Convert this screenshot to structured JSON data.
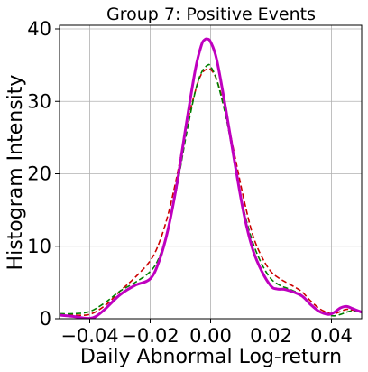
{
  "chart_data": {
    "type": "line",
    "title": "Group 7: Positive Events",
    "xlabel": "Daily Abnormal Log-return",
    "ylabel": "Histogram Intensity",
    "xlim": [
      -0.05,
      0.05
    ],
    "ylim": [
      0,
      40.5
    ],
    "grid": true,
    "x_ticks": [
      -0.04,
      -0.02,
      0.0,
      0.02,
      0.04
    ],
    "x_tick_labels": [
      "−0.04",
      "−0.02",
      "0.00",
      "0.02",
      "0.04"
    ],
    "y_ticks": [
      0,
      10,
      20,
      30,
      40
    ],
    "y_tick_labels": [
      "0",
      "10",
      "20",
      "30",
      "40"
    ],
    "series": [
      {
        "color": "#bf00bf",
        "style": "solid",
        "width": 3,
        "x": [
          -0.05,
          -0.045,
          -0.042,
          -0.04,
          -0.038,
          -0.035,
          -0.03,
          -0.025,
          -0.02,
          -0.017,
          -0.014,
          -0.011,
          -0.008,
          -0.005,
          -0.003,
          -0.002,
          -0.001,
          0.0,
          0.002,
          0.005,
          0.008,
          0.011,
          0.014,
          0.017,
          0.02,
          0.022,
          0.025,
          0.03,
          0.033,
          0.036,
          0.039,
          0.041,
          0.043,
          0.045,
          0.047,
          0.05
        ],
        "y": [
          0.5,
          0.3,
          0.1,
          0.05,
          0.3,
          1.3,
          3.3,
          4.6,
          5.5,
          8.0,
          12.5,
          19.0,
          27.0,
          34.5,
          37.8,
          38.5,
          38.6,
          38.2,
          35.8,
          29.0,
          21.5,
          14.5,
          9.5,
          6.5,
          4.5,
          4.1,
          4.0,
          3.2,
          2.0,
          1.0,
          0.6,
          0.9,
          1.5,
          1.7,
          1.4,
          0.9
        ]
      },
      {
        "color": "#cc0000",
        "style": "dashed",
        "width": 1.6,
        "x": [
          -0.05,
          -0.045,
          -0.04,
          -0.035,
          -0.03,
          -0.025,
          -0.02,
          -0.017,
          -0.014,
          -0.011,
          -0.008,
          -0.005,
          -0.003,
          -0.001,
          0.0,
          0.002,
          0.005,
          0.008,
          0.011,
          0.014,
          0.017,
          0.02,
          0.023,
          0.026,
          0.03,
          0.033,
          0.036,
          0.039,
          0.041,
          0.043,
          0.045,
          0.047,
          0.05
        ],
        "y": [
          0.6,
          0.5,
          0.6,
          1.8,
          3.8,
          5.7,
          8.0,
          10.5,
          14.5,
          20.0,
          26.5,
          31.5,
          33.8,
          34.5,
          34.4,
          33.0,
          28.5,
          22.5,
          16.5,
          11.5,
          8.5,
          6.5,
          5.5,
          4.8,
          3.8,
          2.5,
          1.4,
          0.8,
          0.7,
          1.0,
          1.3,
          1.2,
          0.9
        ]
      },
      {
        "color": "#008000",
        "style": "dashed",
        "width": 1.6,
        "x": [
          -0.05,
          -0.045,
          -0.04,
          -0.035,
          -0.03,
          -0.025,
          -0.02,
          -0.017,
          -0.014,
          -0.011,
          -0.008,
          -0.005,
          -0.003,
          -0.001,
          0.0,
          0.002,
          0.005,
          0.008,
          0.011,
          0.014,
          0.017,
          0.02,
          0.023,
          0.026,
          0.03,
          0.033,
          0.036,
          0.039,
          0.041,
          0.043,
          0.045,
          0.047,
          0.05
        ],
        "y": [
          0.7,
          0.7,
          1.0,
          2.2,
          3.8,
          5.0,
          6.5,
          8.5,
          12.5,
          18.5,
          25.5,
          31.5,
          34.0,
          35.0,
          34.8,
          33.0,
          28.0,
          21.5,
          15.0,
          10.5,
          7.5,
          5.5,
          4.6,
          4.1,
          3.3,
          2.0,
          1.0,
          0.5,
          0.4,
          0.6,
          0.9,
          1.1,
          1.0
        ]
      }
    ]
  }
}
